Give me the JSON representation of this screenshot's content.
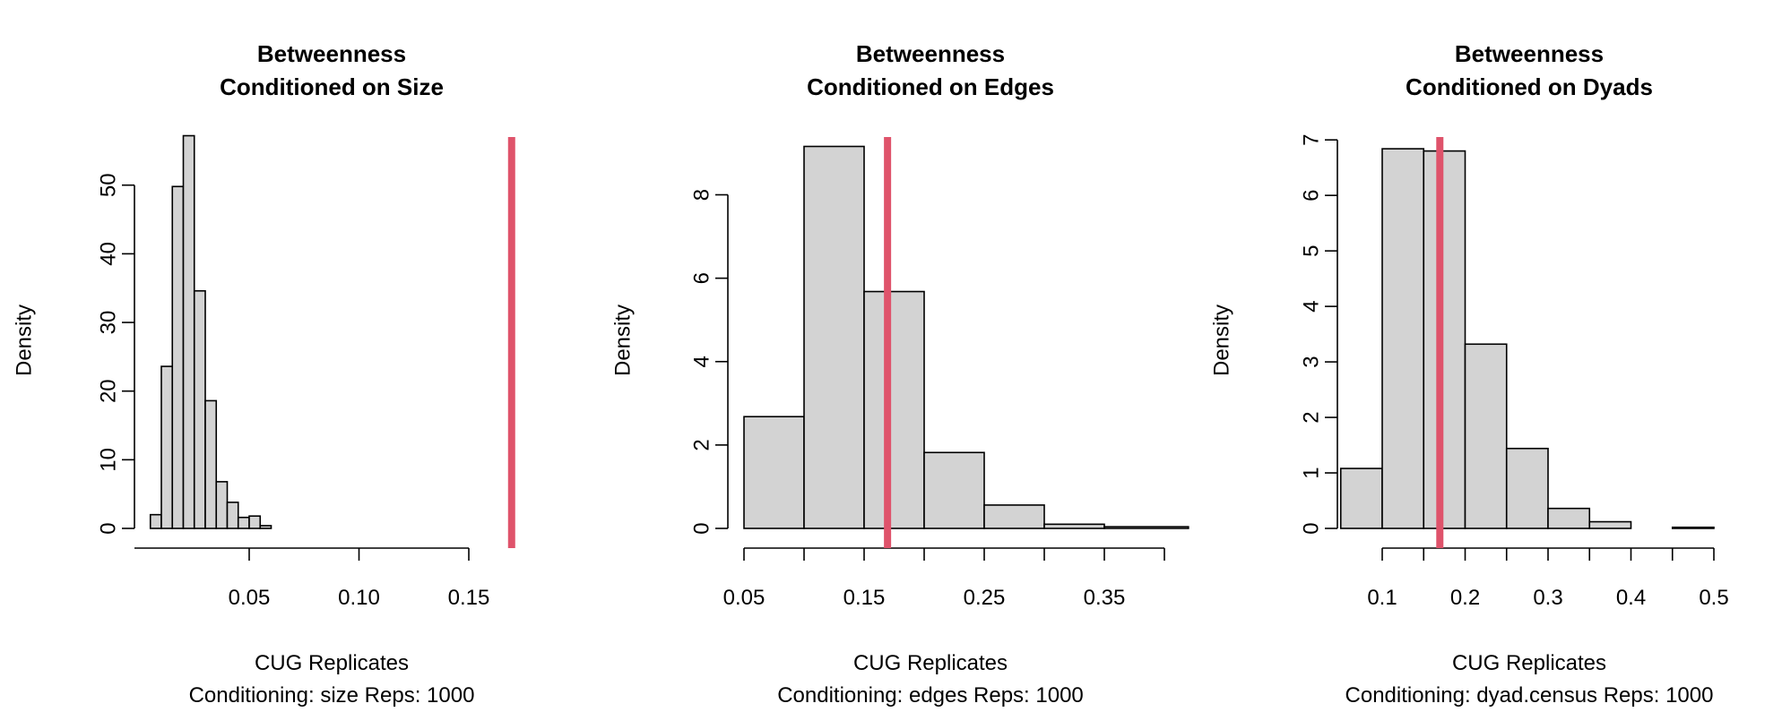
{
  "chart_data": [
    {
      "type": "histogram",
      "title": [
        "Betweenness",
        "Conditioned on Size"
      ],
      "xlabel": "CUG Replicates",
      "sublabel": "Conditioning: size Reps: 1000",
      "ylabel": "Density",
      "xticks": [
        0.05,
        0.1,
        0.15
      ],
      "xtick_labels": [
        "0.05",
        "0.10",
        "0.15"
      ],
      "yticks": [
        0,
        10,
        20,
        30,
        40,
        50
      ],
      "ytick_labels": [
        "0",
        "10",
        "20",
        "30",
        "40",
        "50"
      ],
      "xlim": [
        0.0,
        0.17
      ],
      "ylim": [
        0,
        57.4
      ],
      "bins": [
        {
          "x0": 0.005,
          "x1": 0.01,
          "density": 2
        },
        {
          "x0": 0.01,
          "x1": 0.015,
          "density": 23.6
        },
        {
          "x0": 0.015,
          "x1": 0.02,
          "density": 49.8
        },
        {
          "x0": 0.02,
          "x1": 0.025,
          "density": 57.2
        },
        {
          "x0": 0.025,
          "x1": 0.03,
          "density": 34.6
        },
        {
          "x0": 0.03,
          "x1": 0.035,
          "density": 18.6
        },
        {
          "x0": 0.035,
          "x1": 0.04,
          "density": 6.8
        },
        {
          "x0": 0.04,
          "x1": 0.045,
          "density": 3.8
        },
        {
          "x0": 0.045,
          "x1": 0.05,
          "density": 1.6
        },
        {
          "x0": 0.05,
          "x1": 0.055,
          "density": 1.8
        },
        {
          "x0": 0.055,
          "x1": 0.06,
          "density": 0.4
        }
      ],
      "observed": 0.1695,
      "bar_color": "#d3d3d3",
      "line_color": "#df536b"
    },
    {
      "type": "histogram",
      "title": [
        "Betweenness",
        "Conditioned on Edges"
      ],
      "xlabel": "CUG Replicates",
      "sublabel": "Conditioning: edges Reps: 1000",
      "ylabel": "Density",
      "xticks": [
        0.05,
        0.15,
        0.25,
        0.35
      ],
      "xtick_labels": [
        "0.05",
        "0.15",
        "0.25",
        "0.35"
      ],
      "xminor": [
        0.1,
        0.2,
        0.3,
        0.4
      ],
      "yticks": [
        0,
        2,
        4,
        6,
        8
      ],
      "ytick_labels": [
        "0",
        "2",
        "4",
        "6",
        "8"
      ],
      "xlim": [
        0.05,
        0.42
      ],
      "ylim": [
        0,
        9.45
      ],
      "bins": [
        {
          "x0": 0.05,
          "x1": 0.1,
          "density": 2.68
        },
        {
          "x0": 0.1,
          "x1": 0.15,
          "density": 9.16
        },
        {
          "x0": 0.15,
          "x1": 0.2,
          "density": 5.68
        },
        {
          "x0": 0.2,
          "x1": 0.25,
          "density": 1.82
        },
        {
          "x0": 0.25,
          "x1": 0.3,
          "density": 0.56
        },
        {
          "x0": 0.3,
          "x1": 0.35,
          "density": 0.1
        },
        {
          "x0": 0.35,
          "x1": 0.42,
          "density": 0.04
        }
      ],
      "observed": 0.1695,
      "bar_color": "#d3d3d3",
      "line_color": "#df536b"
    },
    {
      "type": "histogram",
      "title": [
        "Betweenness",
        "Conditioned on Dyads"
      ],
      "xlabel": "CUG Replicates",
      "sublabel": "Conditioning: dyad.census Reps: 1000",
      "ylabel": "Density",
      "xticks": [
        0.1,
        0.2,
        0.3,
        0.4,
        0.5
      ],
      "xtick_labels": [
        "0.1",
        "0.2",
        "0.3",
        "0.4",
        "0.5"
      ],
      "xminor": [
        0.15,
        0.25,
        0.35,
        0.45
      ],
      "yticks": [
        0,
        1,
        2,
        3,
        4,
        5,
        6,
        7
      ],
      "ytick_labels": [
        "0",
        "1",
        "2",
        "3",
        "4",
        "5",
        "6",
        "7"
      ],
      "xlim": [
        0.05,
        0.5
      ],
      "ylim": [
        0,
        7.1
      ],
      "bins": [
        {
          "x0": 0.05,
          "x1": 0.1,
          "density": 1.08
        },
        {
          "x0": 0.1,
          "x1": 0.15,
          "density": 6.84
        },
        {
          "x0": 0.15,
          "x1": 0.2,
          "density": 6.8
        },
        {
          "x0": 0.2,
          "x1": 0.25,
          "density": 3.32
        },
        {
          "x0": 0.25,
          "x1": 0.3,
          "density": 1.44
        },
        {
          "x0": 0.3,
          "x1": 0.35,
          "density": 0.36
        },
        {
          "x0": 0.35,
          "x1": 0.4,
          "density": 0.12
        },
        {
          "x0": 0.4,
          "x1": 0.45,
          "density": 0.0
        },
        {
          "x0": 0.45,
          "x1": 0.5,
          "density": 0.02
        }
      ],
      "observed": 0.1695,
      "bar_color": "#d3d3d3",
      "line_color": "#df536b"
    }
  ]
}
